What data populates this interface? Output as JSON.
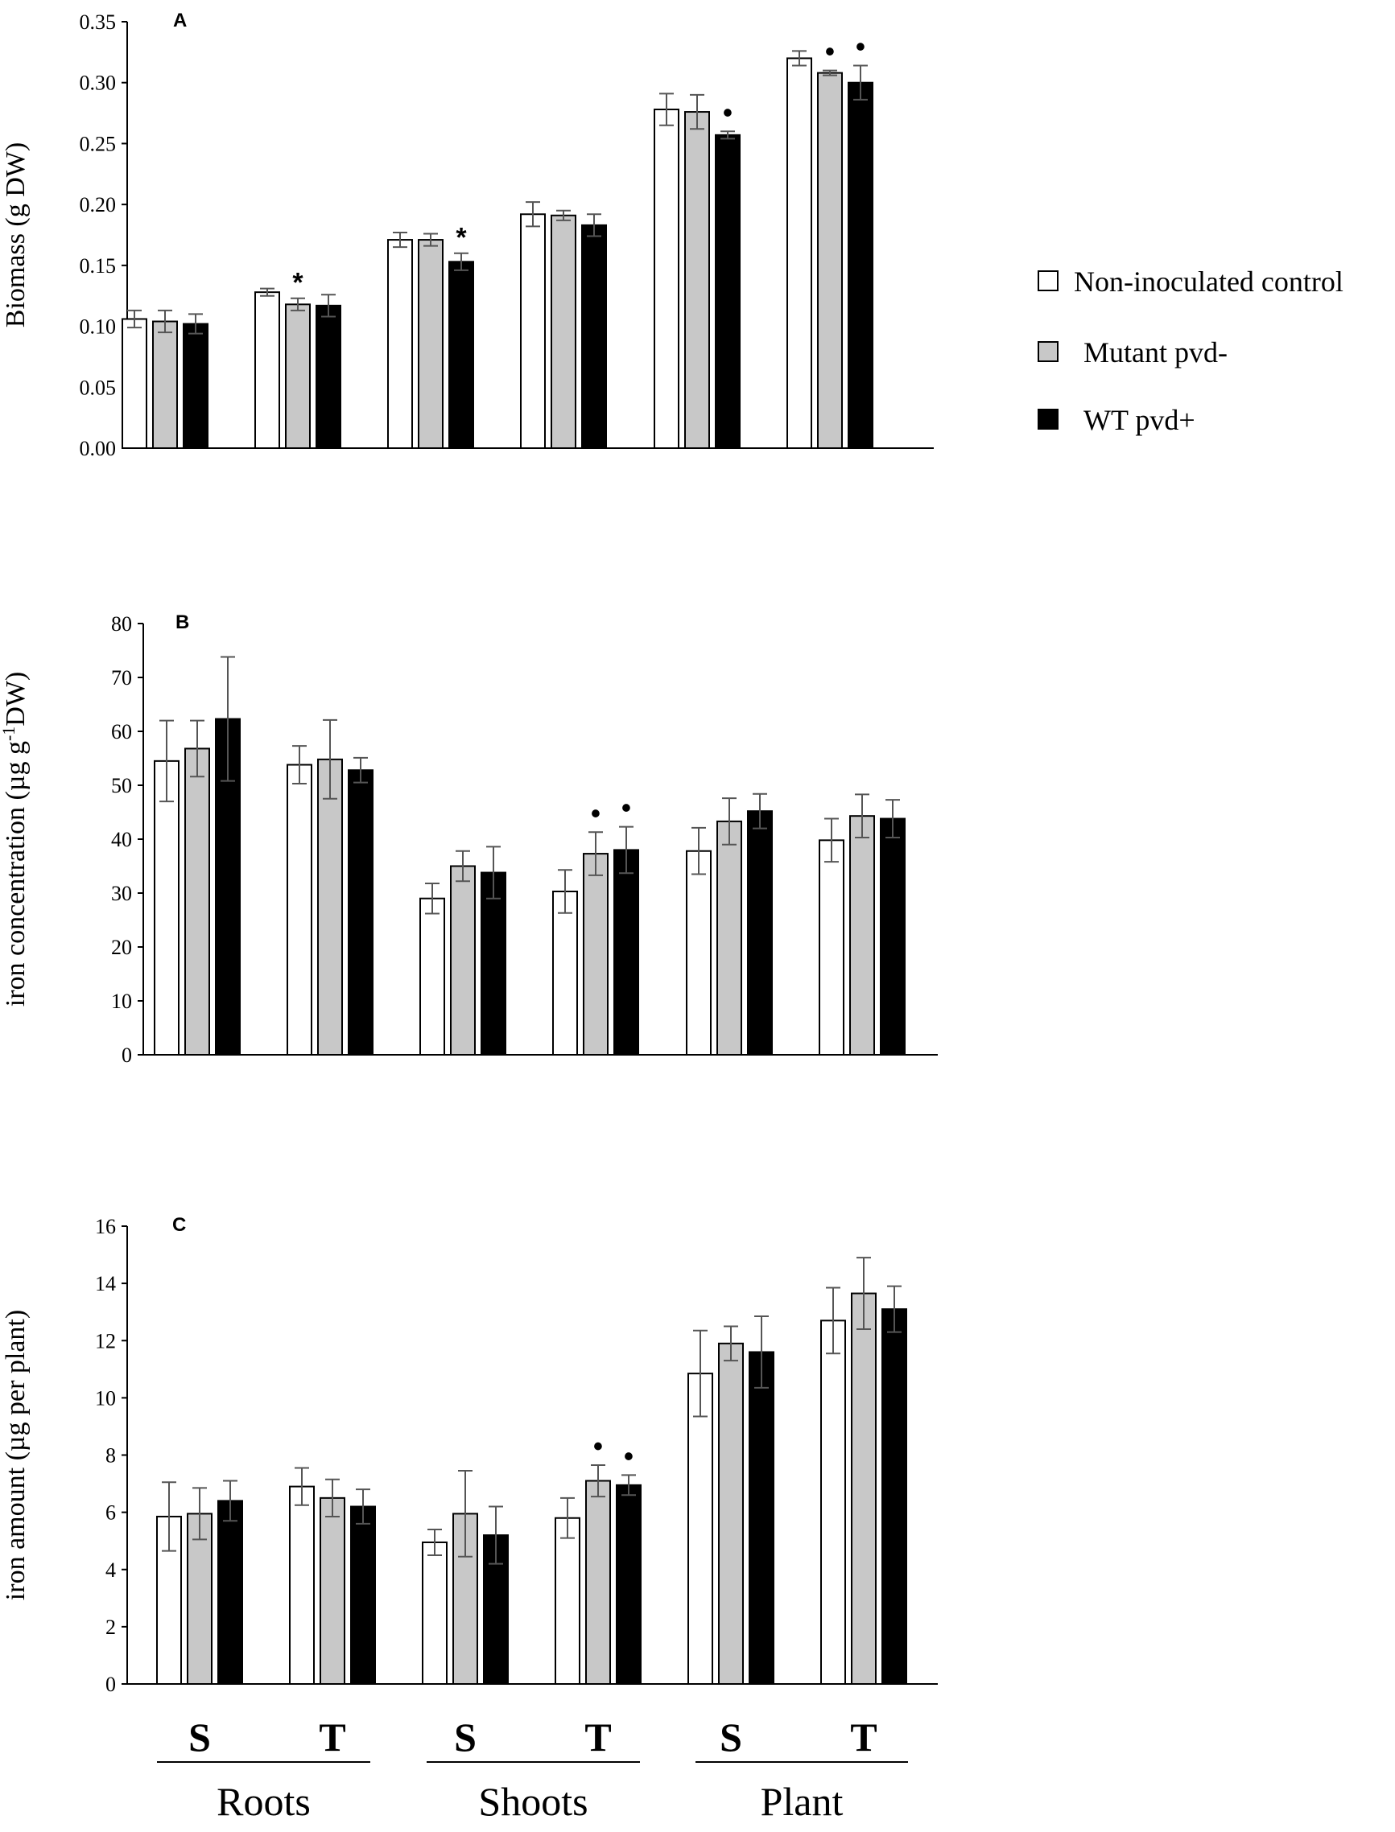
{
  "chart_data": [
    {
      "type": "bar",
      "panel": "A",
      "ylabel": "Biomass (g DW)",
      "ylim": [
        0,
        0.35
      ],
      "yticks": [
        "0.00",
        "0.05",
        "0.10",
        "0.15",
        "0.20",
        "0.25",
        "0.30",
        "0.35"
      ],
      "series": [
        {
          "name": "Non-inoculated control",
          "values": [
            0.106,
            0.128,
            0.171,
            0.192,
            0.278,
            0.32
          ],
          "errors": [
            0.007,
            0.003,
            0.006,
            0.01,
            0.013,
            0.006
          ]
        },
        {
          "name": "Mutant pvd-",
          "values": [
            0.104,
            0.118,
            0.171,
            0.191,
            0.276,
            0.308
          ],
          "errors": [
            0.009,
            0.005,
            0.005,
            0.004,
            0.014,
            0.002
          ]
        },
        {
          "name": "WT pvd+",
          "values": [
            0.102,
            0.117,
            0.153,
            0.183,
            0.257,
            0.3
          ],
          "errors": [
            0.008,
            0.009,
            0.007,
            0.009,
            0.003,
            0.014
          ]
        }
      ],
      "annotations": [
        {
          "group": 1,
          "series": 1,
          "mark": "*"
        },
        {
          "group": 2,
          "series": 2,
          "mark": "*"
        },
        {
          "group": 4,
          "series": 2,
          "mark": "•"
        },
        {
          "group": 5,
          "series": 1,
          "mark": "•"
        },
        {
          "group": 5,
          "series": 2,
          "mark": "•"
        }
      ]
    },
    {
      "type": "bar",
      "panel": "B",
      "ylabel_parts": [
        "iron concentration (µg g",
        "-1",
        "DW)"
      ],
      "ylim": [
        0,
        80
      ],
      "yticks": [
        "0",
        "10",
        "20",
        "30",
        "40",
        "50",
        "60",
        "70",
        "80"
      ],
      "series": [
        {
          "name": "Non-inoculated control",
          "values": [
            54.5,
            53.8,
            29.0,
            30.3,
            37.8,
            39.8
          ],
          "errors": [
            7.5,
            3.5,
            2.8,
            4.0,
            4.3,
            4.0
          ]
        },
        {
          "name": "Mutant pvd-",
          "values": [
            56.8,
            54.8,
            35.0,
            37.3,
            43.3,
            44.3
          ],
          "errors": [
            5.2,
            7.3,
            2.8,
            4.0,
            4.3,
            4.0
          ]
        },
        {
          "name": "WT pvd+",
          "values": [
            62.3,
            52.8,
            33.8,
            38.0,
            45.2,
            43.8
          ],
          "errors": [
            11.5,
            2.3,
            4.8,
            4.3,
            3.2,
            3.5
          ]
        }
      ],
      "annotations": [
        {
          "group": 3,
          "series": 1,
          "mark": "•"
        },
        {
          "group": 3,
          "series": 2,
          "mark": "•"
        }
      ]
    },
    {
      "type": "bar",
      "panel": "C",
      "ylabel": "iron amount (µg per plant)",
      "ylim": [
        0,
        16
      ],
      "yticks": [
        "0",
        "2",
        "4",
        "6",
        "8",
        "10",
        "12",
        "14",
        "16"
      ],
      "series": [
        {
          "name": "Non-inoculated control",
          "values": [
            5.85,
            6.9,
            4.95,
            5.8,
            10.85,
            12.7
          ],
          "errors": [
            1.2,
            0.65,
            0.45,
            0.7,
            1.5,
            1.15
          ]
        },
        {
          "name": "Mutant pvd-",
          "values": [
            5.95,
            6.5,
            5.95,
            7.1,
            11.9,
            13.65
          ],
          "errors": [
            0.9,
            0.65,
            1.5,
            0.55,
            0.6,
            1.25
          ]
        },
        {
          "name": "WT pvd+",
          "values": [
            6.4,
            6.2,
            5.2,
            6.95,
            11.6,
            13.1
          ],
          "errors": [
            0.7,
            0.6,
            1.0,
            0.35,
            1.25,
            0.8
          ]
        }
      ],
      "annotations": [
        {
          "group": 3,
          "series": 1,
          "mark": "•"
        },
        {
          "group": 3,
          "series": 2,
          "mark": "•"
        }
      ]
    }
  ],
  "legend": [
    {
      "label": "Non-inoculated control",
      "color": "#ffffff"
    },
    {
      "label": "Mutant pvd-",
      "color": "#c8c8c8"
    },
    {
      "label": "WT pvd+",
      "color": "#000000"
    }
  ],
  "x_axis": {
    "subcategories": [
      "S",
      "T",
      "S",
      "T",
      "S",
      "T"
    ],
    "groups": [
      "Roots",
      "Shoots",
      "Plant"
    ]
  },
  "colors": {
    "control": "#ffffff",
    "mutant": "#c8c8c8",
    "wt": "#000000",
    "error_bar": "#555555"
  }
}
